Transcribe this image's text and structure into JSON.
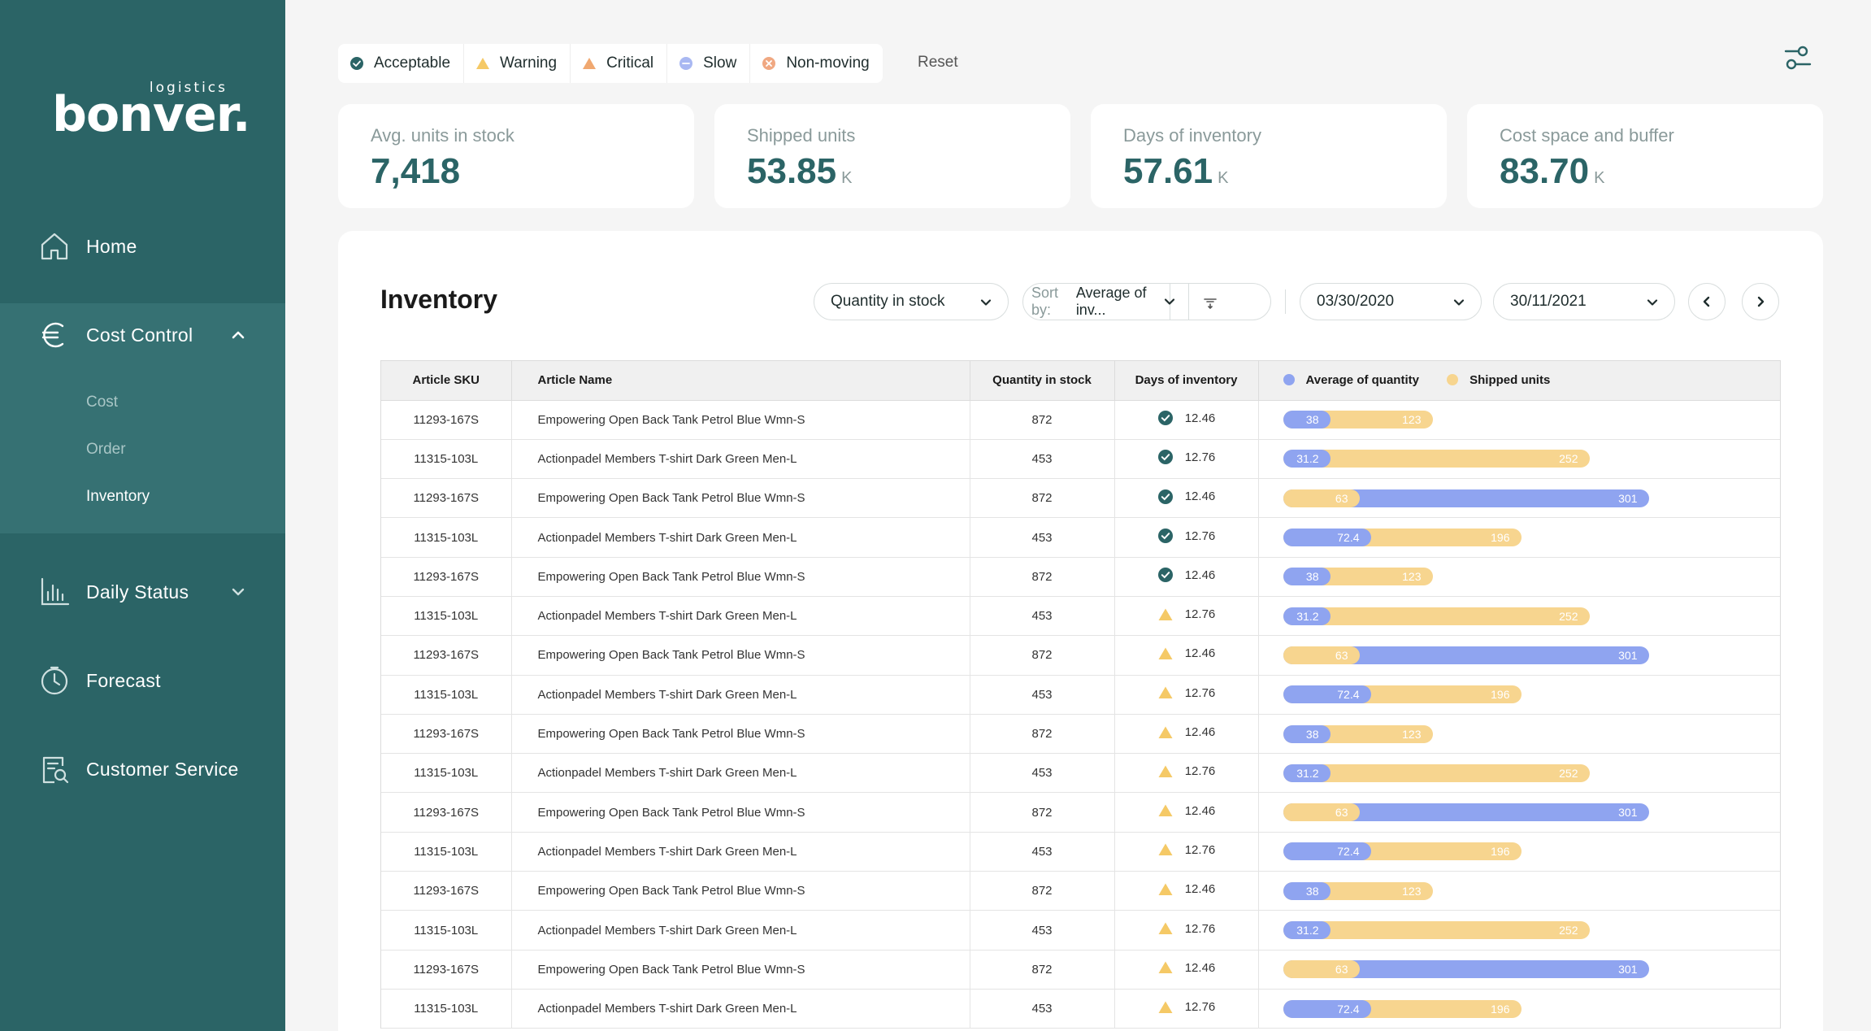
{
  "brand": {
    "name": "bonver.",
    "tag": "logistics"
  },
  "sidebar": {
    "items": [
      {
        "label": "Home"
      },
      {
        "label": "Cost Control"
      },
      {
        "label": "Daily Status"
      },
      {
        "label": "Forecast"
      },
      {
        "label": "Customer Service"
      }
    ],
    "sub_items": [
      {
        "label": "Cost"
      },
      {
        "label": "Order"
      },
      {
        "label": "Inventory"
      }
    ]
  },
  "filters": {
    "items": [
      {
        "label": "Acceptable"
      },
      {
        "label": "Warning"
      },
      {
        "label": "Critical"
      },
      {
        "label": "Slow"
      },
      {
        "label": "Non-moving"
      }
    ],
    "reset_label": "Reset"
  },
  "kpis": [
    {
      "label": "Avg. units in stock",
      "value": "7,418",
      "unit": ""
    },
    {
      "label": "Shipped units",
      "value": "53.85",
      "unit": "K"
    },
    {
      "label": "Days of inventory",
      "value": "57.61",
      "unit": "K"
    },
    {
      "label": "Cost space and buffer",
      "value": "83.70",
      "unit": "K"
    }
  ],
  "inventory": {
    "title": "Inventory",
    "metric_select": "Quantity in stock",
    "sort_prefix": "Sort by:",
    "sort_value": "Average of inv...",
    "date_from": "03/30/2020",
    "date_to": "30/11/2021",
    "columns": {
      "sku": "Article SKU",
      "name": "Article Name",
      "qty": "Quantity in stock",
      "days": "Days of inventory",
      "legend_avg": "Average of quantity",
      "legend_shipped": "Shipped units"
    },
    "colors": {
      "avg": "#8fa4f0",
      "shipped": "#f7d58f",
      "acceptable": "#2b6466",
      "warning": "#f5c966"
    },
    "bar_scale_max": 301,
    "rows": [
      {
        "sku": "11293-167S",
        "name": "Empowering Open Back Tank Petrol Blue Wmn-S",
        "qty": "872",
        "status": "acceptable",
        "days": "12.46",
        "avg": 38,
        "shipped": 123,
        "avg_label": "38",
        "shipped_label": "123"
      },
      {
        "sku": "11315-103L",
        "name": "Actionpadel Members T-shirt Dark Green Men-L",
        "qty": "453",
        "status": "acceptable",
        "days": "12.76",
        "avg": 31.2,
        "shipped": 252,
        "avg_label": "31.2",
        "shipped_label": "252"
      },
      {
        "sku": "11293-167S",
        "name": "Empowering Open Back Tank Petrol Blue Wmn-S",
        "qty": "872",
        "status": "acceptable",
        "days": "12.46",
        "avg": 301,
        "shipped": 63,
        "avg_label": "301",
        "shipped_label": "63"
      },
      {
        "sku": "11315-103L",
        "name": "Actionpadel Members T-shirt Dark Green Men-L",
        "qty": "453",
        "status": "acceptable",
        "days": "12.76",
        "avg": 72.4,
        "shipped": 196,
        "avg_label": "72.4",
        "shipped_label": "196"
      },
      {
        "sku": "11293-167S",
        "name": "Empowering Open Back Tank Petrol Blue Wmn-S",
        "qty": "872",
        "status": "acceptable",
        "days": "12.46",
        "avg": 38,
        "shipped": 123,
        "avg_label": "38",
        "shipped_label": "123"
      },
      {
        "sku": "11315-103L",
        "name": "Actionpadel Members T-shirt Dark Green Men-L",
        "qty": "453",
        "status": "warning",
        "days": "12.76",
        "avg": 31.2,
        "shipped": 252,
        "avg_label": "31.2",
        "shipped_label": "252"
      },
      {
        "sku": "11293-167S",
        "name": "Empowering Open Back Tank Petrol Blue Wmn-S",
        "qty": "872",
        "status": "warning",
        "days": "12.46",
        "avg": 301,
        "shipped": 63,
        "avg_label": "301",
        "shipped_label": "63"
      },
      {
        "sku": "11315-103L",
        "name": "Actionpadel Members T-shirt Dark Green Men-L",
        "qty": "453",
        "status": "warning",
        "days": "12.76",
        "avg": 72.4,
        "shipped": 196,
        "avg_label": "72.4",
        "shipped_label": "196"
      },
      {
        "sku": "11293-167S",
        "name": "Empowering Open Back Tank Petrol Blue Wmn-S",
        "qty": "872",
        "status": "warning",
        "days": "12.46",
        "avg": 38,
        "shipped": 123,
        "avg_label": "38",
        "shipped_label": "123"
      },
      {
        "sku": "11315-103L",
        "name": "Actionpadel Members T-shirt Dark Green Men-L",
        "qty": "453",
        "status": "warning",
        "days": "12.76",
        "avg": 31.2,
        "shipped": 252,
        "avg_label": "31.2",
        "shipped_label": "252"
      },
      {
        "sku": "11293-167S",
        "name": "Empowering Open Back Tank Petrol Blue Wmn-S",
        "qty": "872",
        "status": "warning",
        "days": "12.46",
        "avg": 301,
        "shipped": 63,
        "avg_label": "301",
        "shipped_label": "63"
      },
      {
        "sku": "11315-103L",
        "name": "Actionpadel Members T-shirt Dark Green Men-L",
        "qty": "453",
        "status": "warning",
        "days": "12.76",
        "avg": 72.4,
        "shipped": 196,
        "avg_label": "72.4",
        "shipped_label": "196"
      },
      {
        "sku": "11293-167S",
        "name": "Empowering Open Back Tank Petrol Blue Wmn-S",
        "qty": "872",
        "status": "warning",
        "days": "12.46",
        "avg": 38,
        "shipped": 123,
        "avg_label": "38",
        "shipped_label": "123"
      },
      {
        "sku": "11315-103L",
        "name": "Actionpadel Members T-shirt Dark Green Men-L",
        "qty": "453",
        "status": "warning",
        "days": "12.76",
        "avg": 31.2,
        "shipped": 252,
        "avg_label": "31.2",
        "shipped_label": "252"
      },
      {
        "sku": "11293-167S",
        "name": "Empowering Open Back Tank Petrol Blue Wmn-S",
        "qty": "872",
        "status": "warning",
        "days": "12.46",
        "avg": 301,
        "shipped": 63,
        "avg_label": "301",
        "shipped_label": "63"
      },
      {
        "sku": "11315-103L",
        "name": "Actionpadel Members T-shirt Dark Green Men-L",
        "qty": "453",
        "status": "warning",
        "days": "12.76",
        "avg": 72.4,
        "shipped": 196,
        "avg_label": "72.4",
        "shipped_label": "196"
      }
    ]
  }
}
